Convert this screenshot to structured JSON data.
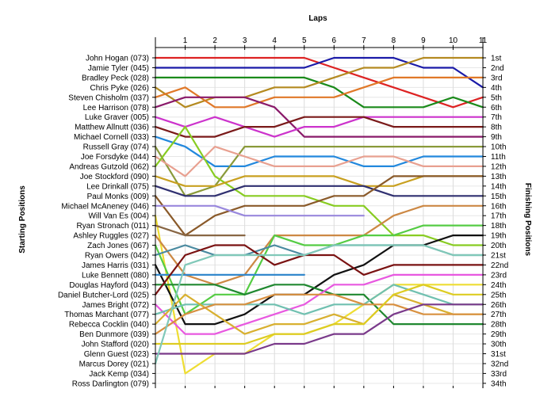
{
  "chart_data": {
    "type": "line",
    "title": "",
    "x_axis_label": "Laps",
    "left_axis_label": "Starting Positions",
    "right_axis_label": "Finishing Positions",
    "x": [
      0,
      1,
      2,
      3,
      4,
      5,
      6,
      7,
      8,
      9,
      10,
      11
    ],
    "x_tick_labels": [
      "1",
      "2",
      "3",
      "4",
      "5",
      "6",
      "7",
      "8",
      "9",
      "10",
      "11"
    ],
    "y_range": [
      1,
      34
    ],
    "y_inverted": true,
    "grid": true,
    "finishing_position_labels": [
      "1st",
      "2nd",
      "3rd",
      "4th",
      "5th",
      "6th",
      "7th",
      "8th",
      "9th",
      "10th",
      "11th",
      "12th",
      "13th",
      "14th",
      "15th",
      "16th",
      "17th",
      "18th",
      "19th",
      "20th",
      "21st",
      "22nd",
      "23rd",
      "24th",
      "25th",
      "26th",
      "27th",
      "28th",
      "29th",
      "30th",
      "31st",
      "32nd",
      "33rd",
      "34th"
    ],
    "series": [
      {
        "name": "John Hogan (073)",
        "color": "#dd2222",
        "positions": [
          1,
          1,
          1,
          1,
          1,
          1,
          2,
          3,
          4,
          5,
          6,
          5
        ]
      },
      {
        "name": "Jamie Tyler (045)",
        "color": "#1a1aa8",
        "positions": [
          2,
          2,
          2,
          2,
          2,
          2,
          1,
          1,
          1,
          2,
          2,
          4
        ]
      },
      {
        "name": "Bradley Peck (028)",
        "color": "#1a8a1a",
        "positions": [
          3,
          3,
          3,
          3,
          3,
          3,
          4,
          6,
          6,
          6,
          5,
          6
        ]
      },
      {
        "name": "Chris Pyke (026)",
        "color": "#b48a20",
        "positions": [
          4,
          6,
          5,
          5,
          4,
          4,
          3,
          2,
          2,
          1,
          1,
          1
        ]
      },
      {
        "name": "Steven Chisholm (037)",
        "color": "#e07828",
        "positions": [
          5,
          4,
          6,
          6,
          5,
          5,
          5,
          4,
          3,
          3,
          3,
          3
        ]
      },
      {
        "name": "Lee Harrison (078)",
        "color": "#8a1a6a",
        "positions": [
          6,
          5,
          5,
          5,
          6,
          9,
          9,
          9,
          9,
          9,
          9,
          9
        ]
      },
      {
        "name": "Luke Graver (005)",
        "color": "#cc33cc",
        "positions": [
          7,
          8,
          7,
          8,
          9,
          8,
          8,
          7,
          7,
          7,
          7,
          7
        ]
      },
      {
        "name": "Matthew Allnutt (036)",
        "color": "#7a1a1a",
        "positions": [
          8,
          9,
          9,
          8,
          8,
          7,
          7,
          7,
          8,
          8,
          8,
          8
        ]
      },
      {
        "name": "Michael Cornell (033)",
        "color": "#2288dd",
        "positions": [
          9,
          10,
          12,
          12,
          11,
          11,
          11,
          12,
          12,
          11,
          11,
          11
        ]
      },
      {
        "name": "Russell Gray (074)",
        "color": "#8a9a3a",
        "positions": [
          10,
          15,
          14,
          10,
          10,
          10,
          10,
          10,
          10,
          10,
          10,
          10
        ]
      },
      {
        "name": "Joe Forsdyke (044)",
        "color": "#e8a090",
        "positions": [
          11,
          13,
          10,
          11,
          12,
          12,
          12,
          11,
          11,
          12,
          12,
          12
        ]
      },
      {
        "name": "Andreas Gutzold (062)",
        "color": "#88cc22",
        "positions": [
          12,
          8,
          13,
          15,
          15,
          15,
          16,
          16,
          19,
          19,
          20,
          20
        ]
      },
      {
        "name": "Joe Stockford (090)",
        "color": "#c8a020",
        "positions": [
          13,
          14,
          14,
          13,
          13,
          13,
          13,
          14,
          14,
          13,
          13,
          13
        ]
      },
      {
        "name": "Lee Drinkall (075)",
        "color": "#303070",
        "positions": [
          14,
          15,
          15,
          14,
          14,
          14,
          14,
          14,
          15,
          15,
          15,
          15
        ]
      },
      {
        "name": "Paul Monks (009)",
        "color": "#8a5a2a",
        "positions": [
          15,
          19,
          17,
          16,
          16,
          16,
          15,
          15,
          13,
          13,
          13,
          13
        ]
      },
      {
        "name": "Michael McAneney (046)",
        "color": "#9988dd",
        "positions": [
          16,
          16,
          16,
          17,
          17,
          17,
          17,
          17,
          null,
          null,
          null,
          null
        ]
      },
      {
        "name": "Will Van Es (004)",
        "color": "#eedd33",
        "positions": [
          17,
          33,
          31,
          31,
          29,
          29,
          28,
          26,
          24,
          24,
          24,
          24
        ]
      },
      {
        "name": "Ryan Stronach (011)",
        "color": "#886644",
        "positions": [
          18,
          19,
          19,
          19,
          null,
          null,
          null,
          null,
          null,
          null,
          null,
          null
        ]
      },
      {
        "name": "Ashley Ruggles (027)",
        "color": "#cc8844",
        "positions": [
          19,
          23,
          24,
          23,
          19,
          19,
          19,
          19,
          17,
          16,
          16,
          16
        ]
      },
      {
        "name": "Zach Jones (067)",
        "color": "#55cc44",
        "positions": [
          20,
          27,
          25,
          25,
          19,
          20,
          20,
          19,
          19,
          18,
          18,
          18
        ]
      },
      {
        "name": "Ryan Owers (042)",
        "color": "#4a8aa0",
        "positions": [
          21,
          20,
          21,
          21,
          20,
          21,
          20,
          20,
          20,
          20,
          21,
          21
        ]
      },
      {
        "name": "James Harris (031)",
        "color": "#111111",
        "positions": [
          22,
          28,
          28,
          27,
          25,
          25,
          23,
          22,
          20,
          20,
          19,
          19
        ]
      },
      {
        "name": "Luke Bennett (080)",
        "color": "#3388cc",
        "positions": [
          23,
          23,
          23,
          23,
          23,
          23,
          null,
          null,
          null,
          null,
          null,
          null
        ]
      },
      {
        "name": "Douglas Hayford (043)",
        "color": "#208830",
        "positions": [
          24,
          24,
          24,
          25,
          24,
          24,
          25,
          25,
          28,
          28,
          28,
          28
        ]
      },
      {
        "name": "Daniel Butcher-Lord (025)",
        "color": "#7a1212",
        "positions": [
          25,
          21,
          20,
          20,
          22,
          21,
          21,
          23,
          22,
          22,
          22,
          22
        ]
      },
      {
        "name": "James Bright (072)",
        "color": "#e858e0",
        "positions": [
          26,
          29,
          29,
          28,
          27,
          26,
          24,
          24,
          23,
          23,
          23,
          23
        ]
      },
      {
        "name": "Thomas Marchant (077)",
        "color": "#70c0b0",
        "positions": [
          27,
          26,
          26,
          26,
          26,
          27,
          26,
          26,
          24,
          25,
          26,
          26
        ]
      },
      {
        "name": "Rebecca Cocklin (040)",
        "color": "#d8b030",
        "positions": [
          28,
          25,
          27,
          29,
          28,
          28,
          27,
          28,
          25,
          26,
          27,
          27
        ]
      },
      {
        "name": "Ben Dunmore (039)",
        "color": "#d89040",
        "positions": [
          29,
          27,
          26,
          26,
          25,
          25,
          25,
          26,
          26,
          27,
          27,
          27
        ]
      },
      {
        "name": "John Stafford (020)",
        "color": "#ddcc22",
        "positions": [
          30,
          30,
          30,
          30,
          29,
          29,
          28,
          28,
          25,
          24,
          25,
          25
        ]
      },
      {
        "name": "Glenn Guest (023)",
        "color": "#7a3a8a",
        "positions": [
          31,
          31,
          31,
          31,
          30,
          30,
          29,
          29,
          27,
          26,
          26,
          26
        ]
      },
      {
        "name": "Marcus Dorey (021)",
        "color": "#80c8b8",
        "positions": [
          32,
          22,
          21,
          21,
          21,
          21,
          20,
          20,
          20,
          20,
          21,
          21
        ]
      },
      {
        "name": "Jack Kemp (034)",
        "color": null,
        "positions": [
          33,
          null,
          null,
          null,
          null,
          null,
          null,
          null,
          null,
          null,
          null,
          null
        ]
      },
      {
        "name": "Ross Darlington (079)",
        "color": null,
        "positions": [
          34,
          null,
          null,
          null,
          null,
          null,
          null,
          null,
          null,
          null,
          null,
          null
        ]
      }
    ]
  }
}
